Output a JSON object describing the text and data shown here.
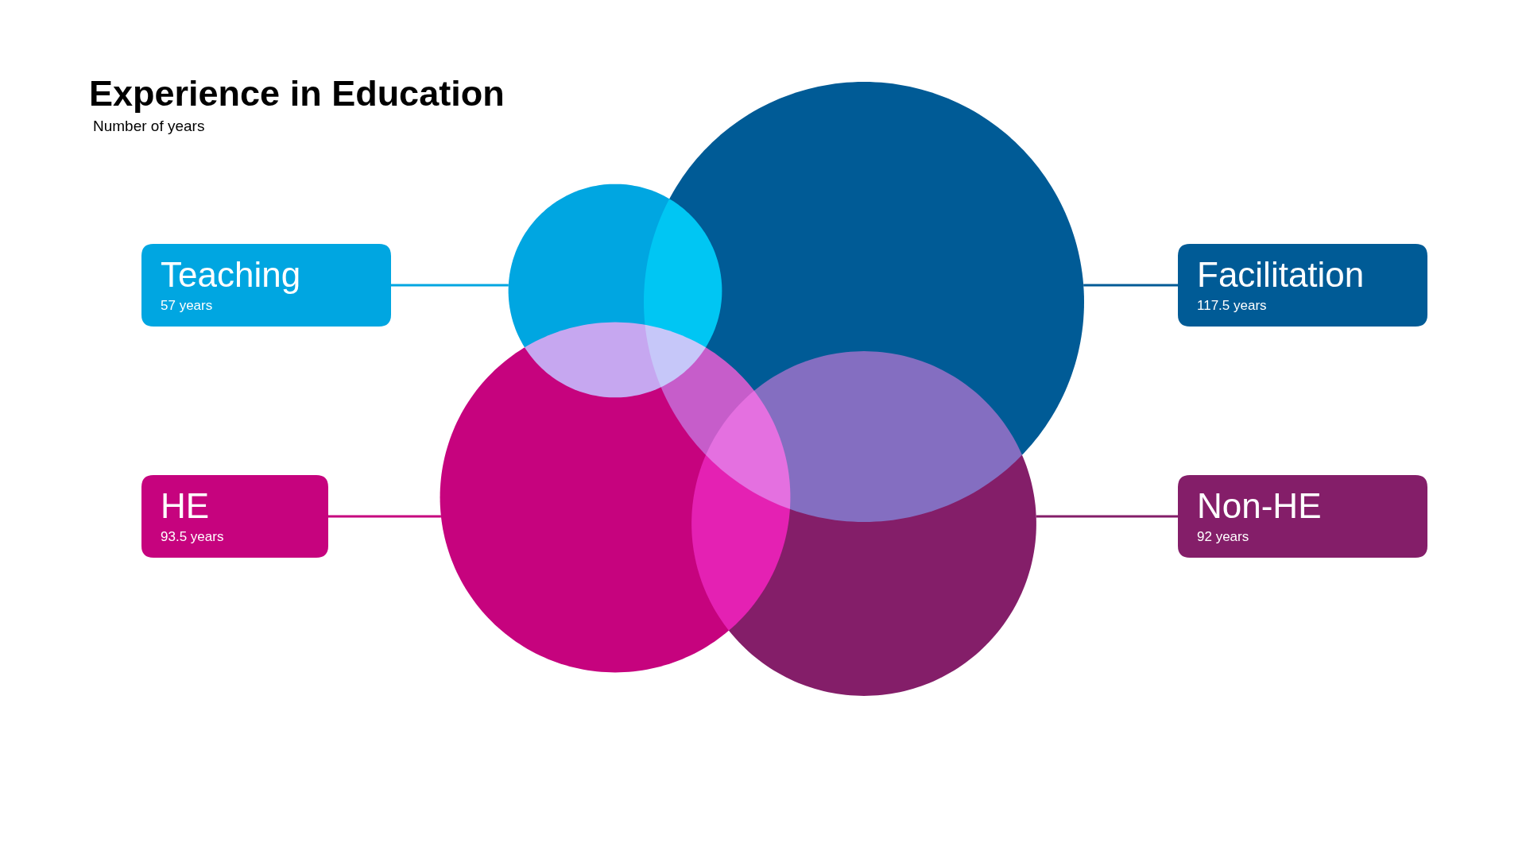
{
  "chart_data": {
    "type": "other",
    "title": "Experience in Education",
    "subtitle": "Number of years",
    "categories": [
      "Teaching",
      "Facilitation",
      "HE",
      "Non-HE"
    ],
    "values": [
      57,
      117.5,
      93.5,
      92
    ],
    "value_labels": [
      "57 years",
      "117.5 years",
      "93.5 years",
      "92 years"
    ],
    "colors": [
      "#00a6e1",
      "#005b96",
      "#c6037e",
      "#841e69"
    ]
  }
}
